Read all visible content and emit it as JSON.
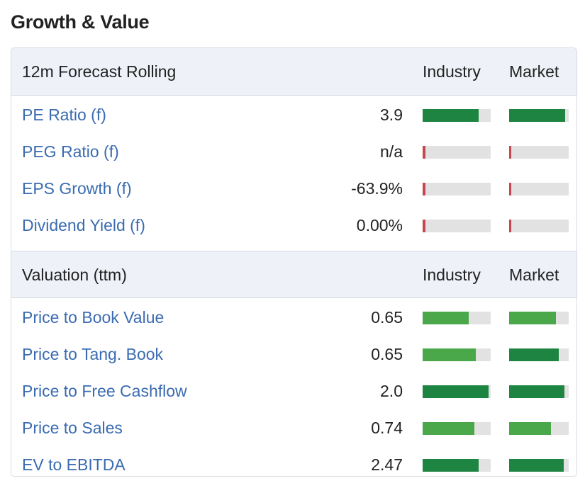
{
  "title": "Growth & Value",
  "sections": [
    {
      "header": "12m Forecast Rolling",
      "col_industry": "Industry",
      "col_market": "Market",
      "rows": [
        {
          "label": "PE Ratio (f)",
          "value": "3.9",
          "industry": 0.82,
          "industry_color": "#1e8442",
          "market": 0.94,
          "market_color": "#1e8442"
        },
        {
          "label": "PEG Ratio (f)",
          "value": "n/a",
          "industry": 0.04,
          "industry_color": "#c8464e",
          "market": 0.04,
          "market_color": "#c8464e"
        },
        {
          "label": "EPS Growth (f)",
          "value": "-63.9%",
          "industry": 0.04,
          "industry_color": "#c8464e",
          "market": 0.04,
          "market_color": "#c8464e"
        },
        {
          "label": "Dividend Yield (f)",
          "value": "0.00%",
          "industry": 0.04,
          "industry_color": "#c8464e",
          "market": 0.04,
          "market_color": "#c8464e"
        }
      ]
    },
    {
      "header": "Valuation (ttm)",
      "col_industry": "Industry",
      "col_market": "Market",
      "rows": [
        {
          "label": "Price to Book Value",
          "value": "0.65",
          "industry": 0.68,
          "industry_color": "#4aa84a",
          "market": 0.78,
          "market_color": "#4aa84a"
        },
        {
          "label": "Price to Tang. Book",
          "value": "0.65",
          "industry": 0.78,
          "industry_color": "#4aa84a",
          "market": 0.83,
          "market_color": "#1e8442"
        },
        {
          "label": "Price to Free Cashflow",
          "value": "2.0",
          "industry": 0.97,
          "industry_color": "#1e8442",
          "market": 0.93,
          "market_color": "#1e8442"
        },
        {
          "label": "Price to Sales",
          "value": "0.74",
          "industry": 0.76,
          "industry_color": "#4aa84a",
          "market": 0.7,
          "market_color": "#4aa84a"
        },
        {
          "label": "EV to EBITDA",
          "value": "2.47",
          "industry": 0.82,
          "industry_color": "#1e8442",
          "market": 0.92,
          "market_color": "#1e8442"
        }
      ]
    }
  ]
}
